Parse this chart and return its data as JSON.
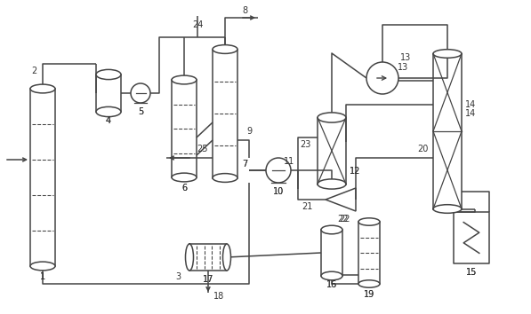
{
  "figsize": [
    5.97,
    3.54
  ],
  "dpi": 100,
  "lc": "#444444",
  "lw": 1.1,
  "fs": 7.0
}
